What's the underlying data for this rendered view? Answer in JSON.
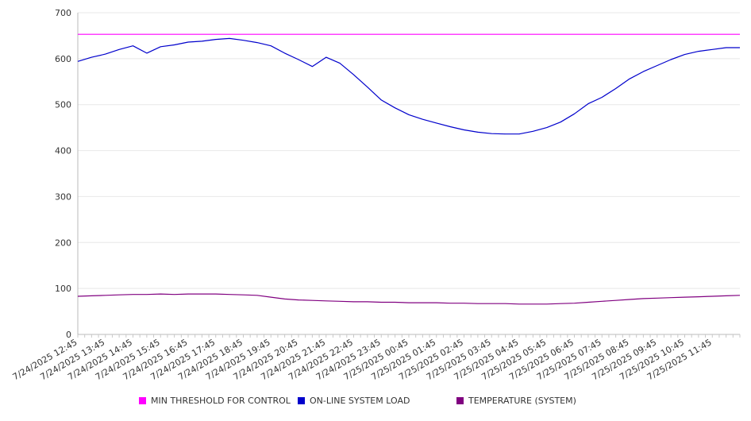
{
  "chart_data": {
    "type": "line",
    "title": "",
    "xlabel": "",
    "ylabel": "",
    "ylim": [
      0,
      700
    ],
    "yticks": [
      0,
      100,
      200,
      300,
      400,
      500,
      600,
      700
    ],
    "grid": true,
    "legend_position": "bottom",
    "x_tick_labels": [
      "7/24/2025 12:45",
      "7/24/2025 13:45",
      "7/24/2025 14:45",
      "7/24/2025 15:45",
      "7/24/2025 16:45",
      "7/24/2025 17:45",
      "7/24/2025 18:45",
      "7/24/2025 19:45",
      "7/24/2025 20:45",
      "7/24/2025 21:45",
      "7/24/2025 22:45",
      "7/24/2025 23:45",
      "7/25/2025 00:45",
      "7/25/2025 01:45",
      "7/25/2025 02:45",
      "7/25/2025 03:45",
      "7/25/2025 04:45",
      "7/25/2025 05:45",
      "7/25/2025 06:45",
      "7/25/2025 07:45",
      "7/25/2025 08:45",
      "7/25/2025 09:45",
      "7/25/2025 10:45",
      "7/25/2025 11:45"
    ],
    "x_hours": [
      0,
      0.5,
      1,
      1.5,
      2,
      2.5,
      3,
      3.5,
      4,
      4.5,
      5,
      5.5,
      6,
      6.5,
      7,
      7.5,
      8,
      8.5,
      9,
      9.5,
      10,
      10.5,
      11,
      11.5,
      12,
      12.5,
      13,
      13.5,
      14,
      14.5,
      15,
      15.5,
      16,
      16.5,
      17,
      17.5,
      18,
      18.5,
      19,
      19.5,
      20,
      20.5,
      21,
      21.5,
      22,
      22.5,
      23,
      23.5,
      24
    ],
    "series": [
      {
        "name": "MIN THRESHOLD FOR CONTROL",
        "color": "#ff00ff",
        "values": [
          653,
          653,
          653,
          653,
          653,
          653,
          653,
          653,
          653,
          653,
          653,
          653,
          653,
          653,
          653,
          653,
          653,
          653,
          653,
          653,
          653,
          653,
          653,
          653,
          653,
          653,
          653,
          653,
          653,
          653,
          653,
          653,
          653,
          653,
          653,
          653,
          653,
          653,
          653,
          653,
          653,
          653,
          653,
          653,
          653,
          653,
          653,
          653,
          653
        ]
      },
      {
        "name": "ON-LINE SYSTEM LOAD",
        "color": "#0000cc",
        "values": [
          594,
          603,
          610,
          620,
          628,
          612,
          626,
          630,
          636,
          638,
          642,
          644,
          640,
          635,
          628,
          612,
          598,
          583,
          603,
          590,
          565,
          538,
          510,
          493,
          478,
          468,
          460,
          452,
          445,
          440,
          437,
          436,
          436,
          442,
          450,
          462,
          480,
          502,
          516,
          535,
          556,
          572,
          585,
          598,
          609,
          616,
          620,
          624,
          624
        ]
      },
      {
        "name": "TEMPERATURE (SYSTEM)",
        "color": "#800080",
        "values": [
          83,
          84,
          85,
          86,
          87,
          87,
          88,
          87,
          88,
          88,
          88,
          87,
          86,
          85,
          81,
          77,
          75,
          74,
          73,
          72,
          71,
          71,
          70,
          70,
          69,
          69,
          69,
          68,
          68,
          67,
          67,
          67,
          66,
          66,
          66,
          67,
          68,
          70,
          72,
          74,
          76,
          78,
          79,
          80,
          81,
          82,
          83,
          84,
          85
        ]
      }
    ]
  }
}
